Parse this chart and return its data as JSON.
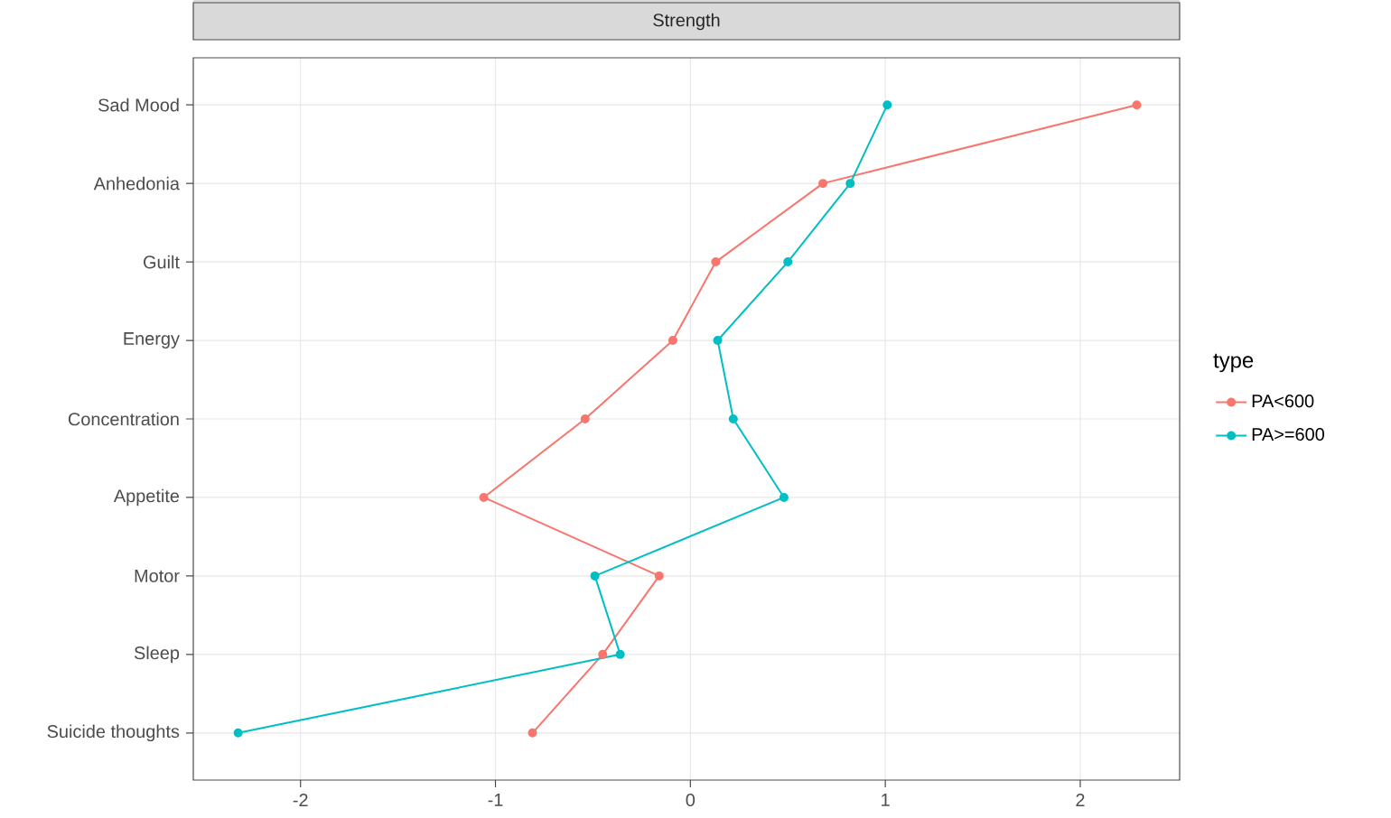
{
  "chart_data": {
    "type": "line",
    "orientation": "horizontal",
    "title": "Strength",
    "legend_title": "type",
    "categories": [
      "Sad Mood",
      "Anhedonia",
      "Guilt",
      "Energy",
      "Concentration",
      "Appetite",
      "Motor",
      "Sleep",
      "Suicide thoughts"
    ],
    "series": [
      {
        "name": "PA<600",
        "color": "#f8766d",
        "values": [
          2.29,
          0.68,
          0.13,
          -0.09,
          -0.54,
          -1.06,
          -0.16,
          -0.45,
          -0.81
        ]
      },
      {
        "name": "PA>=600",
        "color": "#00bfc4",
        "values": [
          1.01,
          0.82,
          0.5,
          0.14,
          0.22,
          0.48,
          -0.49,
          -0.36,
          -2.32
        ]
      }
    ],
    "xlim": [
      -2.55,
      2.51
    ],
    "xticks": [
      -2,
      -1,
      0,
      1,
      2
    ],
    "grid": true,
    "legend": "right",
    "marker": "circle",
    "line_style": "solid"
  }
}
